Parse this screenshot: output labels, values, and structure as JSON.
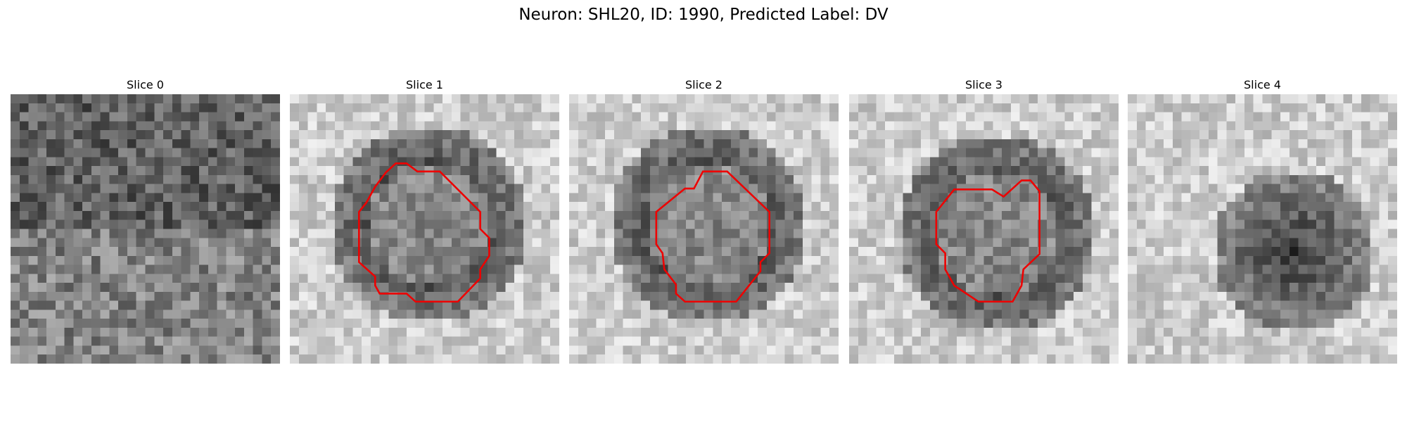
{
  "title": "Neuron: SHL20, ID: 1990, Predicted Label: DV",
  "panels": [
    {
      "title": "Slice 0"
    },
    {
      "title": "Slice 1"
    },
    {
      "title": "Slice 2"
    },
    {
      "title": "Slice 3"
    },
    {
      "title": "Slice 4"
    }
  ]
}
